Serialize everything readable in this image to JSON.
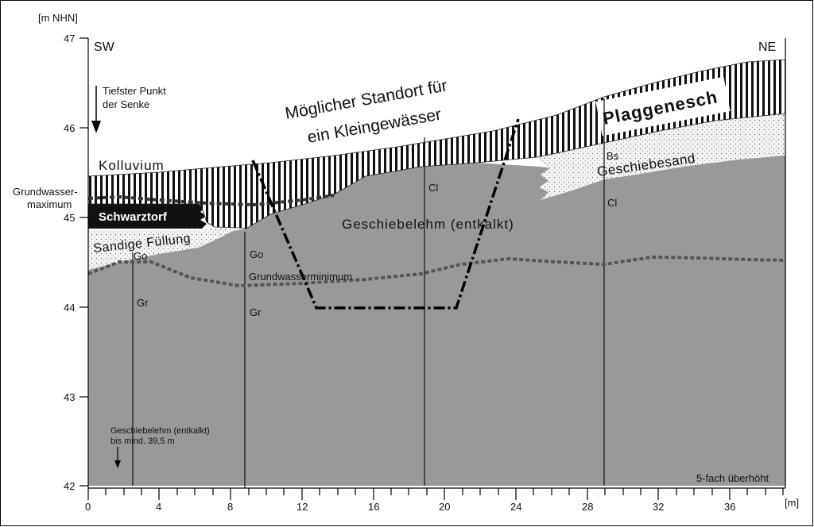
{
  "chart_data": {
    "type": "diagram",
    "y_unit": "[m NHN]",
    "x_unit": "[m]",
    "y_ticks": [
      "47",
      "46",
      "45",
      "44",
      "43",
      "42"
    ],
    "x_ticks": [
      "0",
      "4",
      "8",
      "12",
      "16",
      "20",
      "24",
      "28",
      "32",
      "36"
    ],
    "orientation": {
      "left": "SW",
      "right": "NE"
    },
    "note_exaggeration": "5-fach überhöht",
    "title_line1": "Möglicher Standort für",
    "title_line2": "ein Kleingewässer",
    "lowest_point_line1": "Tiefster Punkt",
    "lowest_point_line2": "der Senke",
    "layers": {
      "kolluvium": "Kolluvium",
      "plaggenesch": "Plaggenesch",
      "schwarztorf": "Schwarztorf",
      "sandige_fuellung": "Sandige Füllung",
      "geschiebesand": "Geschiebesand",
      "geschiebelehm": "Geschiebelehm (entkalkt)"
    },
    "groundwater": {
      "max_line1": "Grundwasser-",
      "max_line2": "maximum",
      "min": "Grundwasserminimum"
    },
    "bottom_note_line1": "Geschiebelehm (entkalkt)",
    "bottom_note_line2": "bis mind. 39,5 m",
    "horizons": {
      "go1": "Go",
      "gr1": "Gr",
      "go2": "Go",
      "gr2": "Gr",
      "cl1": "Cl",
      "bs": "Bs",
      "cl2": "Cl"
    }
  }
}
